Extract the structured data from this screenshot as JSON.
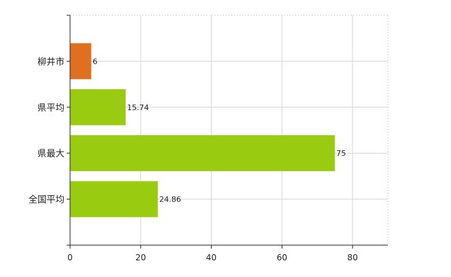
{
  "chart_data": {
    "type": "bar",
    "orientation": "horizontal",
    "categories": [
      "柳井市",
      "県平均",
      "県最大",
      "全国平均"
    ],
    "values": [
      6,
      15.74,
      75,
      24.86
    ],
    "value_labels": [
      "6",
      "15.74",
      "75",
      "24.86"
    ],
    "bar_colors": [
      "#e07020",
      "#99cc10",
      "#99cc10",
      "#99cc10"
    ],
    "title": "",
    "xlabel": "",
    "ylabel": "",
    "xlim": [
      0,
      90
    ],
    "x_ticks": [
      0,
      20,
      40,
      60,
      80
    ],
    "grid": true
  }
}
